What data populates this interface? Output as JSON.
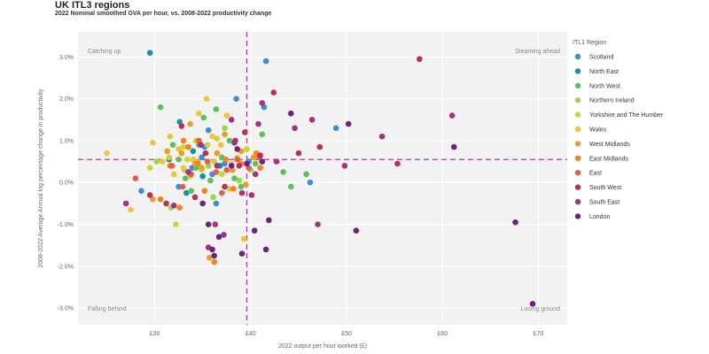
{
  "chart_data": {
    "type": "scatter",
    "title": "UK ITL3 regions",
    "subtitle": "2022 Nominal smoothed GVA per hour, vs. 2008-2022 productivity change",
    "xlabel": "2022 output per hour worked (£)",
    "ylabel": "2008-2022 Average Annual log percentage change in productivity",
    "xlim": [
      22,
      73
    ],
    "ylim": [
      -3.4,
      3.6
    ],
    "x_ticks": [
      30,
      40,
      50,
      60,
      70
    ],
    "x_tick_labels": [
      "£30",
      "£40",
      "£50",
      "£60",
      "£70"
    ],
    "y_ticks": [
      -3,
      -2,
      -1,
      0,
      1,
      2,
      3
    ],
    "y_tick_labels": [
      "-3.0%",
      "-2.0%",
      "-1.0%",
      "0.0%",
      "1.0%",
      "2.0%",
      "3.0%"
    ],
    "ref_x": 39.6,
    "ref_y": 0.55,
    "quadrant_labels": {
      "top_left": "Catching up",
      "top_right": "Steaming ahead",
      "bottom_left": "Falling behind",
      "bottom_right": "Losing ground"
    },
    "legend_title": "ITL1 Region",
    "legend_position": "right",
    "series": [
      {
        "name": "Scotland",
        "color": "#3a8fd8",
        "points": [
          [
            28.6,
            -0.2
          ],
          [
            32.5,
            -0.1
          ],
          [
            34.9,
            0.6
          ],
          [
            35.6,
            1.25
          ],
          [
            36.0,
            0.2
          ],
          [
            36.4,
            -0.5
          ],
          [
            37.3,
            0.45
          ],
          [
            38.5,
            2.0
          ],
          [
            39.8,
            0.5
          ],
          [
            41.4,
            1.8
          ],
          [
            41.6,
            2.9
          ],
          [
            46.2,
            0.0
          ],
          [
            48.9,
            1.3
          ],
          [
            35.2,
            0.85
          ],
          [
            33.9,
            0.35
          ]
        ]
      },
      {
        "name": "North East",
        "color": "#1493a3",
        "points": [
          [
            29.5,
            3.1
          ],
          [
            32.6,
            1.45
          ],
          [
            33.3,
            -0.25
          ],
          [
            35.0,
            0.15
          ],
          [
            36.8,
            0.4
          ],
          [
            34.0,
            0.75
          ],
          [
            31.5,
            0.55
          ]
        ]
      },
      {
        "name": "North West",
        "color": "#5cc05c",
        "points": [
          [
            30.6,
            1.8
          ],
          [
            31.9,
            0.9
          ],
          [
            32.5,
            0.55
          ],
          [
            33.2,
            0.1
          ],
          [
            33.8,
            -0.2
          ],
          [
            34.6,
            0.9
          ],
          [
            35.1,
            1.55
          ],
          [
            35.8,
            0.05
          ],
          [
            36.4,
            1.75
          ],
          [
            37.0,
            0.6
          ],
          [
            37.8,
            1.0
          ],
          [
            38.3,
            0.1
          ],
          [
            39.0,
            -0.1
          ],
          [
            41.2,
            1.15
          ],
          [
            43.4,
            0.25
          ],
          [
            44.2,
            -0.1
          ],
          [
            45.8,
            0.2
          ],
          [
            40.5,
            0.45
          ],
          [
            34.3,
            0.35
          ]
        ]
      },
      {
        "name": "Northern Ireland",
        "color": "#9ad84a",
        "points": [
          [
            30.2,
            0.5
          ],
          [
            31.7,
            -0.6
          ],
          [
            33.1,
            0.3
          ],
          [
            34.5,
            0.5
          ],
          [
            36.1,
            -0.35
          ],
          [
            38.8,
            0.05
          ],
          [
            40.0,
            0.3
          ],
          [
            37.3,
            1.3
          ],
          [
            35.6,
            0.4
          ]
        ]
      },
      {
        "name": "Yorkshire and The Humber",
        "color": "#cad633",
        "points": [
          [
            29.5,
            0.35
          ],
          [
            31.5,
            0.6
          ],
          [
            32.2,
            -1.0
          ],
          [
            33.0,
            0.85
          ],
          [
            33.7,
            0.15
          ],
          [
            34.3,
            1.0
          ],
          [
            34.9,
            0.3
          ],
          [
            35.5,
            0.9
          ],
          [
            36.2,
            0.5
          ],
          [
            37.0,
            0.2
          ],
          [
            37.8,
            -0.15
          ],
          [
            38.6,
            0.6
          ],
          [
            39.6,
            0.8
          ],
          [
            36.5,
            1.05
          ],
          [
            33.4,
            0.55
          ]
        ]
      },
      {
        "name": "Wales",
        "color": "#f4c33a",
        "points": [
          [
            25.0,
            0.7
          ],
          [
            27.5,
            -0.65
          ],
          [
            29.8,
            0.95
          ],
          [
            30.8,
            0.5
          ],
          [
            31.6,
            1.1
          ],
          [
            32.5,
            0.8
          ],
          [
            33.0,
            0.35
          ],
          [
            34.0,
            0.55
          ],
          [
            34.6,
            1.65
          ],
          [
            35.4,
            2.0
          ],
          [
            36.0,
            1.1
          ],
          [
            36.9,
            0.9
          ],
          [
            37.5,
            1.6
          ],
          [
            38.0,
            0.45
          ],
          [
            39.3,
            -1.35
          ],
          [
            32.0,
            0.2
          ]
        ]
      },
      {
        "name": "West Midlands",
        "color": "#f09a2a",
        "points": [
          [
            29.8,
            -0.4
          ],
          [
            31.3,
            0.75
          ],
          [
            32.8,
            0.7
          ],
          [
            33.7,
            1.4
          ],
          [
            34.9,
            0.35
          ],
          [
            35.7,
            -1.8
          ],
          [
            36.5,
            0.7
          ],
          [
            37.3,
            1.15
          ],
          [
            38.1,
            0.3
          ],
          [
            39.0,
            0.75
          ],
          [
            39.5,
            -0.05
          ],
          [
            40.3,
            0.6
          ],
          [
            34.2,
            0.45
          ]
        ]
      },
      {
        "name": "East Midlands",
        "color": "#f5821f",
        "points": [
          [
            30.6,
            -0.4
          ],
          [
            31.6,
            0.4
          ],
          [
            32.6,
            -0.6
          ],
          [
            33.5,
            0.85
          ],
          [
            34.5,
            0.45
          ],
          [
            35.2,
            -0.2
          ],
          [
            36.2,
            -1.9
          ],
          [
            37.4,
            0.55
          ],
          [
            38.2,
            -0.15
          ],
          [
            39.0,
            0.45
          ],
          [
            40.6,
            0.7
          ],
          [
            41.0,
            0.35
          ],
          [
            33.0,
            1.0
          ]
        ]
      },
      {
        "name": "East",
        "color": "#ea5a4a",
        "points": [
          [
            28.0,
            0.1
          ],
          [
            31.8,
            0.4
          ],
          [
            32.9,
            -0.1
          ],
          [
            33.8,
            0.2
          ],
          [
            34.6,
            1.0
          ],
          [
            35.5,
            0.5
          ],
          [
            36.4,
            0.25
          ],
          [
            37.5,
            0.3
          ],
          [
            38.6,
            0.55
          ],
          [
            39.8,
            0.35
          ],
          [
            40.9,
            0.6
          ],
          [
            37.0,
            -0.25
          ]
        ]
      },
      {
        "name": "South West",
        "color": "#b3335a",
        "points": [
          [
            29.5,
            -0.3
          ],
          [
            31.2,
            -0.5
          ],
          [
            32.8,
            1.35
          ],
          [
            34.2,
            -0.35
          ],
          [
            35.3,
            0.7
          ],
          [
            36.3,
            -1.0
          ],
          [
            37.3,
            -0.1
          ],
          [
            38.4,
            1.0
          ],
          [
            39.4,
            1.2
          ],
          [
            40.1,
            -0.3
          ],
          [
            41.0,
            0.65
          ],
          [
            42.4,
            2.15
          ],
          [
            47.2,
            0.85
          ],
          [
            55.3,
            0.45
          ],
          [
            57.6,
            2.95
          ],
          [
            45.0,
            0.7
          ],
          [
            38.8,
            0.4
          ]
        ]
      },
      {
        "name": "South East",
        "color": "#a23284",
        "points": [
          [
            27.0,
            -0.5
          ],
          [
            32.0,
            -0.55
          ],
          [
            33.5,
            0.25
          ],
          [
            34.8,
            0.9
          ],
          [
            35.6,
            -1.55
          ],
          [
            36.5,
            0.4
          ],
          [
            37.2,
            -1.25
          ],
          [
            38.3,
            0.95
          ],
          [
            39.1,
            -0.25
          ],
          [
            40.5,
            0.2
          ],
          [
            41.2,
            1.9
          ],
          [
            42.7,
            0.5
          ],
          [
            44.6,
            1.3
          ],
          [
            46.4,
            1.5
          ],
          [
            47.0,
            -1.0
          ],
          [
            49.8,
            0.4
          ],
          [
            53.7,
            1.1
          ],
          [
            61.0,
            1.6
          ],
          [
            40.8,
            1.4
          ],
          [
            38.0,
            1.5
          ]
        ]
      },
      {
        "name": "London",
        "color": "#6a2580",
        "points": [
          [
            35.0,
            -0.5
          ],
          [
            35.6,
            -1.0
          ],
          [
            36.0,
            -1.6
          ],
          [
            36.7,
            -1.3
          ],
          [
            38.0,
            0.4
          ],
          [
            38.6,
            0.8
          ],
          [
            39.1,
            -1.7
          ],
          [
            39.6,
            0.45
          ],
          [
            40.4,
            -1.15
          ],
          [
            41.2,
            0.5
          ],
          [
            41.6,
            -1.6
          ],
          [
            41.9,
            -0.9
          ],
          [
            44.2,
            1.65
          ],
          [
            50.2,
            1.4
          ],
          [
            51.0,
            -1.15
          ],
          [
            61.2,
            0.85
          ],
          [
            67.6,
            -0.95
          ],
          [
            69.4,
            -2.9
          ],
          [
            36.2,
            -1.75
          ]
        ]
      }
    ]
  }
}
